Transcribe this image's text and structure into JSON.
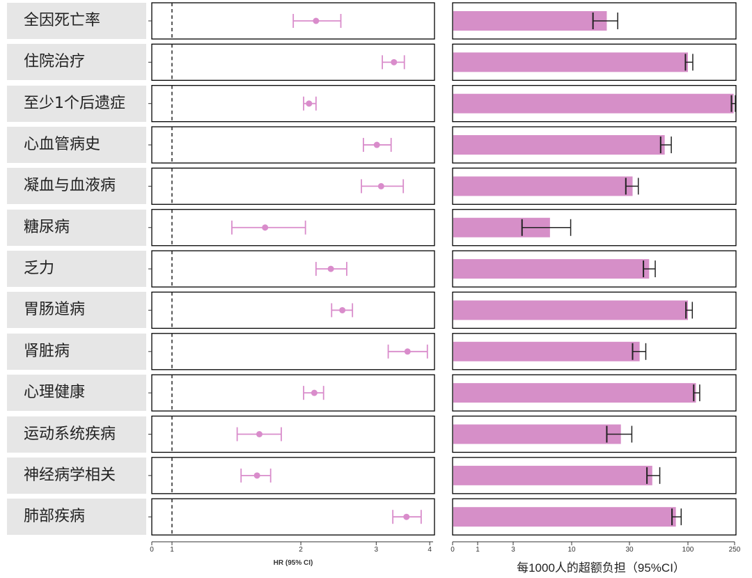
{
  "chart_data": [
    {
      "type": "forest",
      "xlabel": "HR (95% CI)",
      "x_scale": "log",
      "reference_line": 1,
      "x_ticks": [
        0,
        1,
        2,
        3,
        4
      ],
      "grid": false,
      "color": "#d98ccb",
      "categories": [
        "全因死亡率",
        "住院治疗",
        "至少1个后遗症",
        "心血管病史",
        "凝血与血液病",
        "糖尿病",
        "乏力",
        "胃肠道病",
        "肾脏病",
        "心理健康",
        "运动系统疾病",
        "神经病学相关",
        "肺部疾病"
      ],
      "series": [
        {
          "hr": [
            2.17,
            3.3,
            2.09,
            3.01,
            3.08,
            1.65,
            2.35,
            2.5,
            3.55,
            2.15,
            1.6,
            1.58,
            3.53
          ],
          "lower": [
            1.92,
            3.1,
            2.03,
            2.8,
            2.77,
            1.38,
            2.17,
            2.36,
            3.2,
            2.03,
            1.42,
            1.45,
            3.28
          ],
          "upper": [
            2.48,
            3.49,
            2.17,
            3.25,
            3.47,
            2.05,
            2.56,
            2.64,
            3.95,
            2.26,
            1.8,
            1.7,
            3.82
          ]
        }
      ]
    },
    {
      "type": "bar",
      "orientation": "horizontal",
      "xlabel": "每1000人的超额负担（95%CI）",
      "x_scale": "log",
      "x_ticks": [
        0,
        1,
        3,
        10,
        30,
        100,
        250
      ],
      "grid": false,
      "bar_color": "#d68fc8",
      "errorbar_color": "#222222",
      "categories": [
        "全因死亡率",
        "住院治疗",
        "至少1个后遗症",
        "心血管病史",
        "凝血与血液病",
        "糖尿病",
        "乏力",
        "胃肠道病",
        "肾脏病",
        "心理健康",
        "运动系统疾病",
        "神经病学相关",
        "肺部疾病"
      ],
      "series": [
        {
          "values": [
            19.5,
            100,
            245,
            62,
            32,
            6.4,
            45,
            100,
            37,
            117,
            25.5,
            48,
            78
          ],
          "lower": [
            15,
            95,
            235,
            57,
            28,
            3.6,
            40,
            96,
            32,
            112,
            19.5,
            43,
            72
          ],
          "upper": [
            24,
            110,
            255,
            71,
            36,
            9.8,
            51,
            109,
            42,
            126,
            31.5,
            56,
            87
          ]
        }
      ]
    }
  ]
}
